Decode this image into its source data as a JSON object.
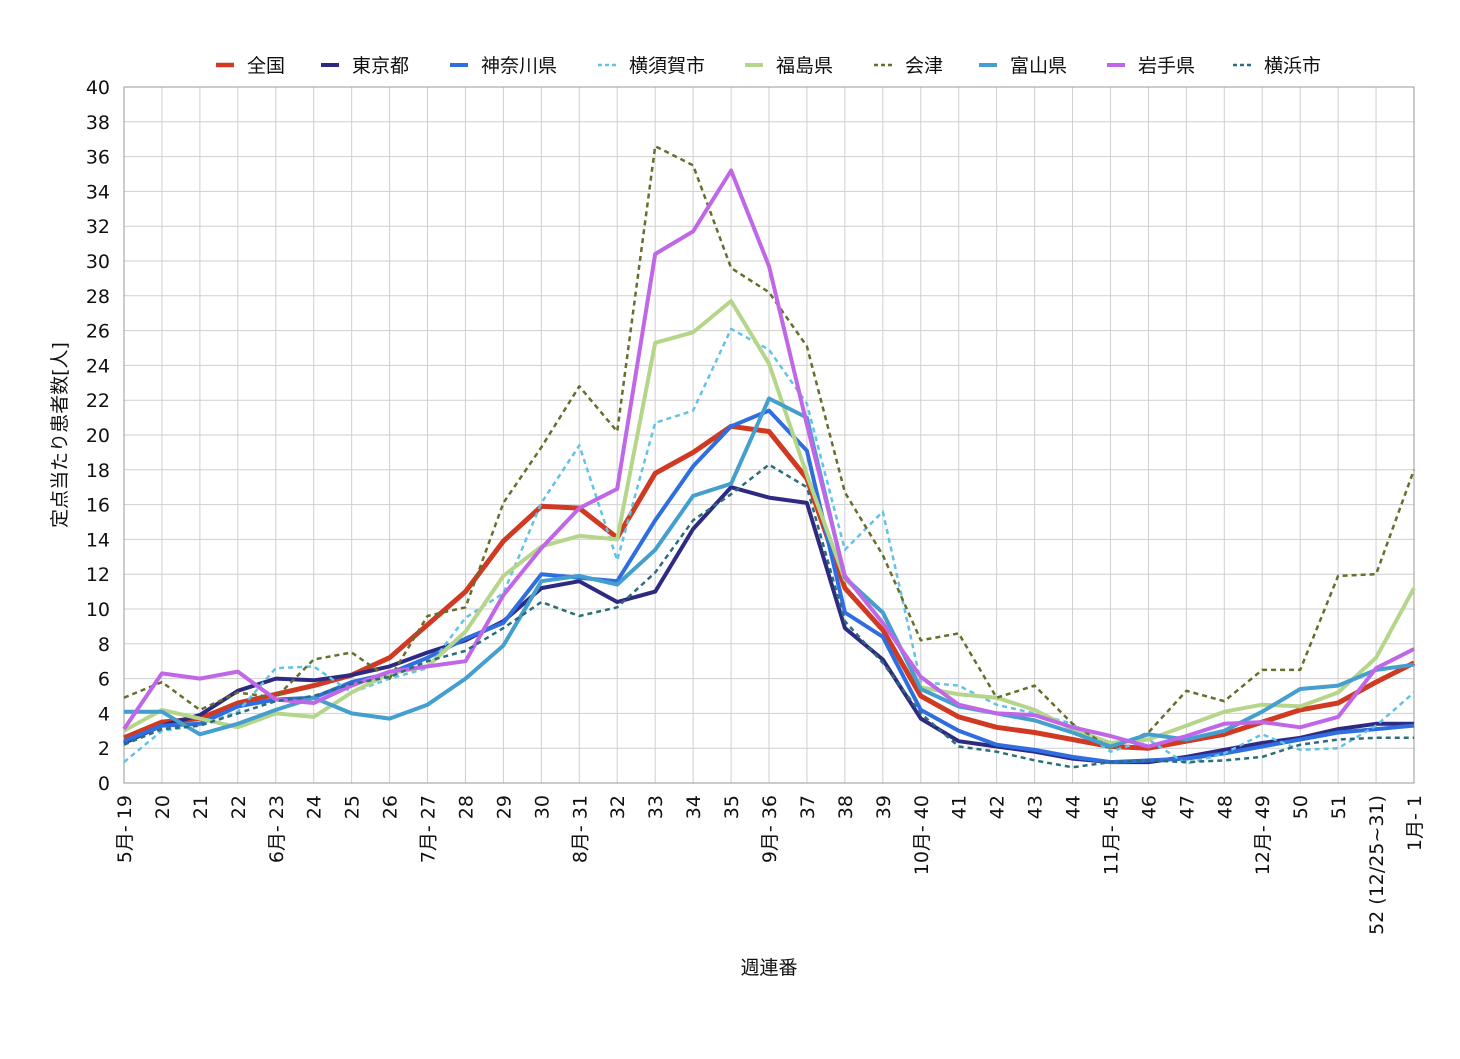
{
  "chart_data": {
    "type": "line",
    "xlabel": "週連番",
    "ylabel": "定点当たり患者数[人]",
    "ylim": [
      0,
      40
    ],
    "yticks": [
      0,
      2,
      4,
      6,
      8,
      10,
      12,
      14,
      16,
      18,
      20,
      22,
      24,
      26,
      28,
      30,
      32,
      34,
      36,
      38,
      40
    ],
    "grid": true,
    "legend_position": "top",
    "categories": [
      "5月- 19",
      "20",
      "21",
      "22",
      "6月- 23",
      "24",
      "25",
      "26",
      "7月- 27",
      "28",
      "29",
      "30",
      "8月- 31",
      "32",
      "33",
      "34",
      "35",
      "9月- 36",
      "37",
      "38",
      "39",
      "10月- 40",
      "41",
      "42",
      "43",
      "44",
      "11月- 45",
      "46",
      "47",
      "48",
      "12月- 49",
      "50",
      "51",
      "52 (12/25~31)",
      "1月- 1"
    ],
    "series": [
      {
        "name": "全国",
        "color": "#d03a22",
        "dash": "solid",
        "width": 5,
        "values": [
          2.6,
          3.5,
          3.7,
          4.6,
          5.1,
          5.6,
          6.2,
          7.2,
          9.1,
          11.0,
          13.9,
          15.9,
          15.8,
          14.1,
          17.8,
          19.0,
          20.5,
          20.2,
          17.5,
          11.2,
          8.8,
          5.0,
          3.8,
          3.2,
          2.9,
          2.5,
          2.1,
          2.0,
          2.4,
          2.8,
          3.5,
          4.2,
          4.6,
          5.8,
          6.9
        ]
      },
      {
        "name": "東京都",
        "color": "#2e2a82",
        "dash": "solid",
        "width": 4,
        "values": [
          2.3,
          3.3,
          3.9,
          5.3,
          6.0,
          5.9,
          6.2,
          6.7,
          7.5,
          8.2,
          9.3,
          11.2,
          11.6,
          10.4,
          11.0,
          14.6,
          17.0,
          16.4,
          16.1,
          8.9,
          7.1,
          3.7,
          2.4,
          2.1,
          1.8,
          1.4,
          1.2,
          1.2,
          1.5,
          1.9,
          2.3,
          2.6,
          3.1,
          3.4,
          3.4
        ]
      },
      {
        "name": "神奈川県",
        "color": "#2f6ee0",
        "dash": "solid",
        "width": 4,
        "values": [
          2.4,
          3.3,
          3.4,
          4.4,
          4.8,
          4.9,
          5.8,
          6.3,
          7.2,
          8.3,
          9.2,
          12.0,
          11.8,
          11.6,
          15.1,
          18.2,
          20.5,
          21.4,
          19.1,
          9.8,
          8.4,
          4.2,
          3.0,
          2.2,
          1.9,
          1.5,
          1.2,
          1.3,
          1.4,
          1.7,
          2.1,
          2.5,
          2.9,
          3.1,
          3.3
        ]
      },
      {
        "name": "横須賀市",
        "color": "#63c2e6",
        "dash": "dash",
        "width": 2.5,
        "values": [
          1.2,
          3.0,
          3.3,
          4.1,
          6.6,
          6.7,
          5.2,
          6.0,
          6.6,
          9.5,
          10.9,
          16.1,
          19.4,
          12.8,
          20.7,
          21.4,
          26.1,
          24.9,
          21.8,
          13.4,
          15.6,
          5.8,
          5.6,
          4.5,
          4.0,
          3.4,
          1.8,
          2.5,
          1.1,
          1.7,
          2.8,
          1.9,
          2.0,
          3.3,
          5.2
        ]
      },
      {
        "name": "福島県",
        "color": "#b5d68a",
        "dash": "solid",
        "width": 4,
        "values": [
          3.0,
          4.2,
          3.7,
          3.2,
          4.0,
          3.8,
          5.2,
          6.3,
          6.7,
          8.7,
          11.9,
          13.6,
          14.2,
          14.0,
          25.3,
          25.9,
          27.7,
          24.1,
          17.7,
          11.7,
          9.8,
          5.5,
          5.1,
          4.9,
          4.2,
          3.1,
          2.3,
          2.5,
          3.3,
          4.1,
          4.5,
          4.4,
          5.2,
          7.2,
          11.2
        ]
      },
      {
        "name": "会津",
        "color": "#63702c",
        "dash": "dash",
        "width": 2.5,
        "values": [
          4.9,
          5.8,
          4.2,
          5.2,
          4.9,
          7.1,
          7.5,
          6.0,
          9.6,
          10.1,
          16.1,
          19.3,
          22.8,
          20.2,
          36.6,
          35.5,
          29.6,
          28.2,
          25.1,
          16.7,
          13.1,
          8.2,
          8.6,
          4.9,
          5.6,
          3.4,
          2.0,
          2.9,
          5.3,
          4.7,
          6.5,
          6.5,
          11.9,
          12.0,
          18.0
        ]
      },
      {
        "name": "富山県",
        "color": "#449fcf",
        "dash": "solid",
        "width": 4,
        "values": [
          4.1,
          4.1,
          2.8,
          3.4,
          4.2,
          4.9,
          4.0,
          3.7,
          4.5,
          6.0,
          7.9,
          11.6,
          11.9,
          11.4,
          13.4,
          16.5,
          17.2,
          22.1,
          21.0,
          11.8,
          9.8,
          5.4,
          4.4,
          4.0,
          3.6,
          2.9,
          2.1,
          2.8,
          2.5,
          3.0,
          4.1,
          5.4,
          5.6,
          6.5,
          6.8
        ]
      },
      {
        "name": "岩手県",
        "color": "#c067e8",
        "dash": "solid",
        "width": 4,
        "values": [
          3.1,
          6.3,
          6.0,
          6.4,
          4.8,
          4.6,
          5.6,
          6.4,
          6.7,
          7.0,
          10.8,
          13.5,
          15.8,
          16.9,
          30.4,
          31.7,
          35.2,
          29.7,
          20.6,
          11.9,
          9.2,
          6.1,
          4.5,
          4.0,
          3.9,
          3.2,
          2.7,
          2.1,
          2.7,
          3.4,
          3.5,
          3.2,
          3.8,
          6.6,
          7.7
        ]
      },
      {
        "name": "横浜市",
        "color": "#2b6d78",
        "dash": "dash",
        "width": 2.5,
        "values": [
          2.2,
          3.1,
          3.3,
          4.0,
          4.7,
          5.0,
          5.7,
          6.1,
          7.0,
          7.6,
          8.9,
          10.4,
          9.6,
          10.1,
          12.1,
          15.1,
          16.6,
          18.3,
          17.0,
          9.3,
          6.9,
          4.0,
          2.1,
          1.8,
          1.3,
          0.9,
          1.2,
          1.3,
          1.2,
          1.3,
          1.5,
          2.2,
          2.5,
          2.6,
          2.6
        ]
      }
    ]
  }
}
